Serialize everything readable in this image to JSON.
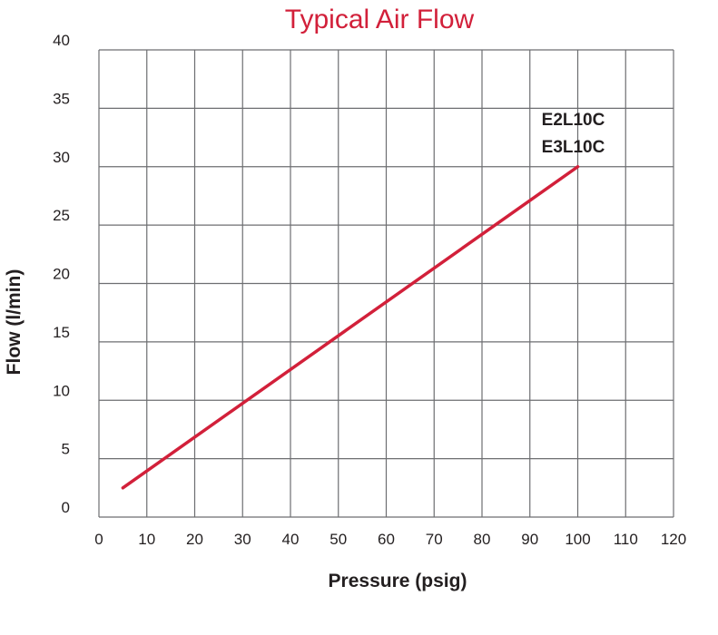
{
  "chart_data": {
    "type": "line",
    "title": "Typical Air Flow",
    "xlabel": "Pressure (psig)",
    "ylabel": "Flow (l/min)",
    "xlim": [
      0,
      120
    ],
    "ylim": [
      0,
      40
    ],
    "x_ticks": [
      0,
      10,
      20,
      30,
      40,
      50,
      60,
      70,
      80,
      90,
      100,
      110,
      120
    ],
    "y_ticks": [
      0,
      5,
      10,
      15,
      20,
      25,
      30,
      35,
      40
    ],
    "grid": true,
    "series": [
      {
        "name": "E2L10C / E3L10C",
        "label_lines": [
          "E2L10C",
          "E3L10C"
        ],
        "x": [
          5,
          100
        ],
        "y": [
          2.5,
          30
        ]
      }
    ],
    "colors": {
      "title": "#d2203a",
      "line": "#d2203a",
      "grid": "#6d6e71",
      "text": "#231f20"
    }
  }
}
